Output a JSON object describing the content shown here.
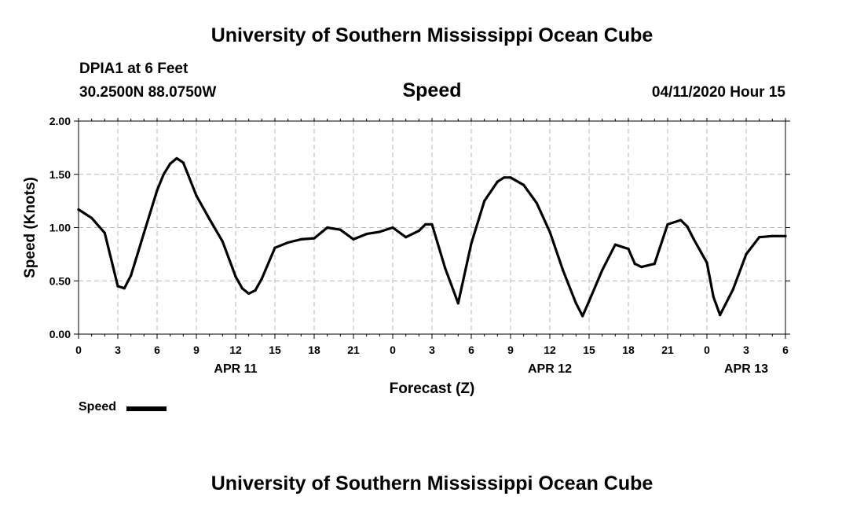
{
  "header": {
    "title": "University of Southern Mississippi Ocean Cube",
    "station": "DPIA1 at 6 Feet",
    "coords": "30.2500N 88.0750W",
    "variable": "Speed",
    "datetime": "04/11/2020 Hour 15"
  },
  "footer": {
    "title": "University of Southern Mississippi Ocean Cube"
  },
  "chart_data": {
    "type": "line",
    "title": "Speed",
    "xlabel": "Forecast (Z)",
    "ylabel": "Speed (Knots)",
    "xlim": [
      0,
      54
    ],
    "ylim": [
      0,
      2
    ],
    "yticks": [
      "0.00",
      "0.50",
      "1.00",
      "1.50",
      "2.00"
    ],
    "xticks": [
      "0",
      "3",
      "6",
      "9",
      "12",
      "15",
      "18",
      "21",
      "0",
      "3",
      "6",
      "9",
      "12",
      "15",
      "18",
      "21",
      "0",
      "3",
      "6"
    ],
    "day_labels": [
      {
        "label": "APR 11",
        "hour": 12
      },
      {
        "label": "APR 12",
        "hour": 36
      },
      {
        "label": "APR 13",
        "hour": 51
      }
    ],
    "grid": true,
    "legend": "bottom-left",
    "series": [
      {
        "name": "Speed",
        "color": "#000000",
        "x": [
          0,
          1,
          2,
          3,
          3.5,
          4,
          5,
          6,
          6.5,
          7,
          7.5,
          8,
          9,
          10,
          11,
          12,
          12.5,
          13,
          13.5,
          14,
          15,
          16,
          17,
          18,
          19,
          20,
          21,
          22,
          23,
          24,
          25,
          26,
          26.5,
          27,
          28,
          29,
          30,
          31,
          32,
          32.5,
          33,
          34,
          35,
          36,
          37,
          38,
          38.5,
          39,
          40,
          41,
          42,
          42.5,
          43,
          44,
          45,
          46,
          46.5,
          47,
          48,
          48.5,
          49,
          50,
          51,
          52,
          53,
          54
        ],
        "y": [
          1.17,
          1.09,
          0.95,
          0.45,
          0.43,
          0.55,
          0.95,
          1.35,
          1.5,
          1.6,
          1.65,
          1.61,
          1.3,
          1.08,
          0.87,
          0.54,
          0.43,
          0.38,
          0.41,
          0.52,
          0.81,
          0.86,
          0.89,
          0.9,
          1.0,
          0.98,
          0.89,
          0.94,
          0.96,
          1.0,
          0.91,
          0.97,
          1.03,
          1.03,
          0.62,
          0.29,
          0.85,
          1.25,
          1.43,
          1.47,
          1.47,
          1.4,
          1.23,
          0.96,
          0.6,
          0.29,
          0.17,
          0.31,
          0.6,
          0.84,
          0.8,
          0.66,
          0.63,
          0.66,
          1.03,
          1.07,
          1.01,
          0.89,
          0.67,
          0.35,
          0.18,
          0.42,
          0.75,
          0.91,
          0.92,
          0.92
        ]
      }
    ]
  },
  "legend": {
    "label": "Speed"
  }
}
